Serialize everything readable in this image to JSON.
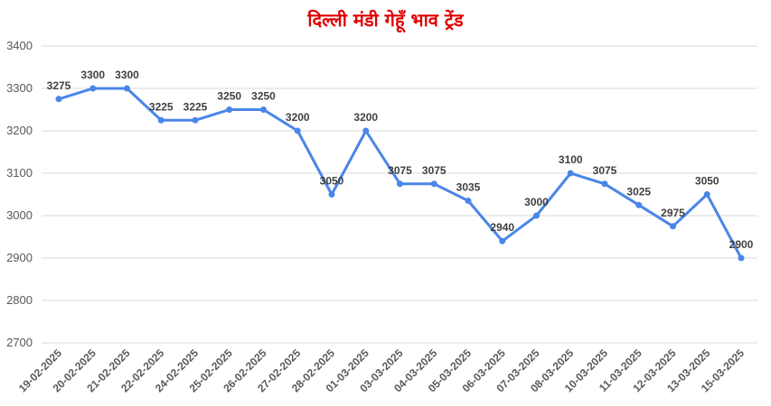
{
  "chart_data": {
    "type": "line",
    "title": "दिल्ली मंडी गेहूँ भाव ट्रेंड",
    "xlabel": "",
    "ylabel": "",
    "ylim": [
      2700,
      3400
    ],
    "yticks": [
      2700,
      2800,
      2900,
      3000,
      3100,
      3200,
      3300,
      3400
    ],
    "grid": true,
    "legend": "none",
    "line_color": "#4a86e8",
    "title_color": "#e00000",
    "categories": [
      "19-02-2025",
      "20-02-2025",
      "21-02-2025",
      "22-02-2025",
      "24-02-2025",
      "25-02-2025",
      "26-02-2025",
      "27-02-2025",
      "28-02-2025",
      "01-03-2025",
      "03-03-2025",
      "04-03-2025",
      "05-03-2025",
      "06-03-2025",
      "07-03-2025",
      "08-03-2025",
      "10-03-2025",
      "11-03-2025",
      "12-03-2025",
      "13-03-2025",
      "15-03-2025"
    ],
    "values": [
      3275,
      3300,
      3300,
      3225,
      3225,
      3250,
      3250,
      3200,
      3050,
      3200,
      3075,
      3075,
      3035,
      2940,
      3000,
      3100,
      3075,
      3025,
      2975,
      3050,
      2900
    ]
  }
}
